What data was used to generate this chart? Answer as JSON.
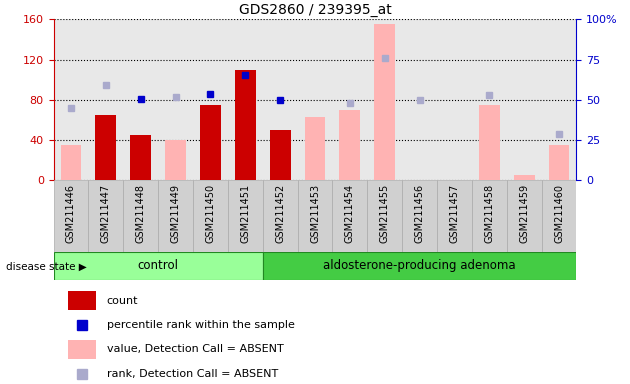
{
  "title": "GDS2860 / 239395_at",
  "categories": [
    "GSM211446",
    "GSM211447",
    "GSM211448",
    "GSM211449",
    "GSM211450",
    "GSM211451",
    "GSM211452",
    "GSM211453",
    "GSM211454",
    "GSM211455",
    "GSM211456",
    "GSM211457",
    "GSM211458",
    "GSM211459",
    "GSM211460"
  ],
  "count_values": [
    0,
    65,
    45,
    0,
    75,
    110,
    50,
    0,
    0,
    0,
    0,
    0,
    0,
    0,
    0
  ],
  "percentile_rank": [
    null,
    null,
    81,
    null,
    86,
    105,
    80,
    null,
    null,
    null,
    null,
    null,
    null,
    null,
    null
  ],
  "value_absent": [
    35,
    null,
    42,
    40,
    null,
    null,
    null,
    63,
    70,
    155,
    null,
    null,
    75,
    5,
    35
  ],
  "rank_absent": [
    72,
    95,
    null,
    83,
    null,
    null,
    null,
    null,
    77,
    122,
    80,
    null,
    85,
    null,
    46
  ],
  "n_control": 6,
  "left_yaxis_color": "#cc0000",
  "right_yaxis_color": "#0000cc",
  "ylim_left": [
    0,
    160
  ],
  "ylim_right": [
    0,
    100
  ],
  "yticks_left": [
    0,
    40,
    80,
    120,
    160
  ],
  "ytick_labels_left": [
    "0",
    "40",
    "80",
    "120",
    "160"
  ],
  "yticks_right": [
    0,
    25,
    50,
    75,
    100
  ],
  "ytick_labels_right": [
    "0",
    "25",
    "50",
    "75",
    "100%"
  ],
  "bar_color_count": "#cc0000",
  "bar_color_absent": "#ffb3b3",
  "marker_color_rank": "#0000cc",
  "marker_color_rank_absent": "#aaaacc",
  "plot_bg_color": "#e8e8e8",
  "control_bg": "#99ff99",
  "adenoma_bg": "#44cc44",
  "disease_border": "#228822",
  "legend_items": [
    {
      "label": "count",
      "color": "#cc0000",
      "type": "bar"
    },
    {
      "label": "percentile rank within the sample",
      "color": "#0000cc",
      "type": "marker"
    },
    {
      "label": "value, Detection Call = ABSENT",
      "color": "#ffb3b3",
      "type": "bar"
    },
    {
      "label": "rank, Detection Call = ABSENT",
      "color": "#aaaacc",
      "type": "marker"
    }
  ]
}
